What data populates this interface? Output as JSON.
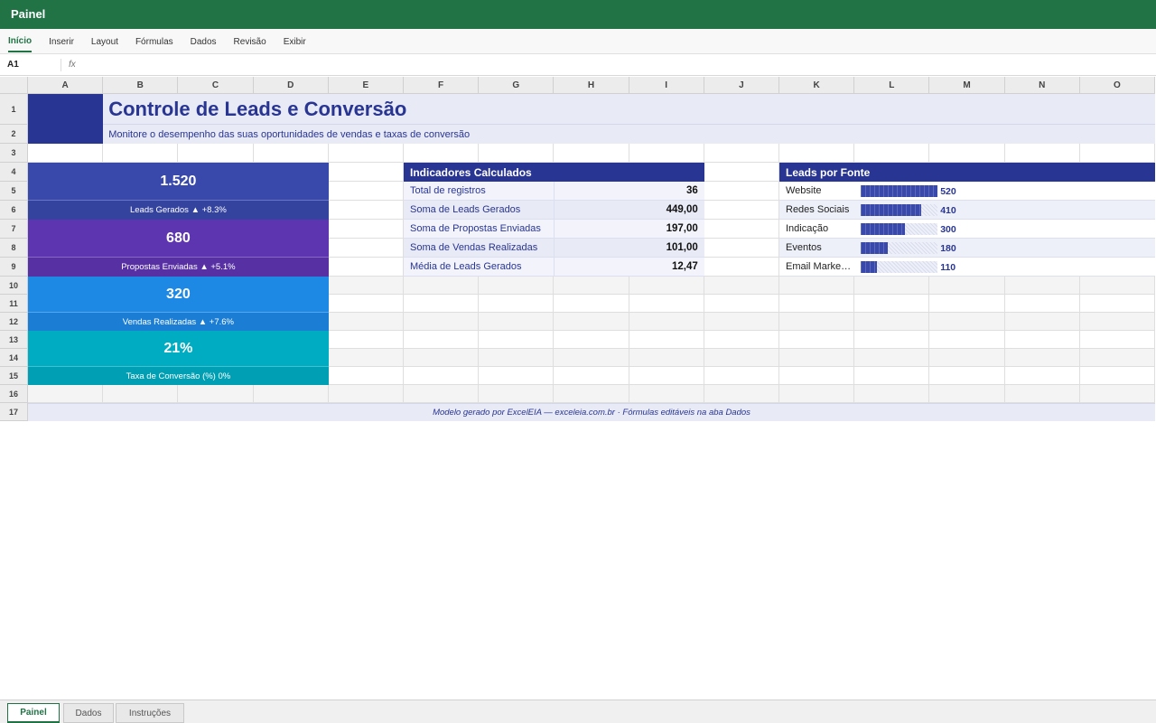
{
  "app": {
    "title": "Painel",
    "ribbon_tabs": [
      "Início",
      "Inserir",
      "Layout",
      "Fórmulas",
      "Dados",
      "Revisão",
      "Exibir"
    ],
    "cell_ref": "A1",
    "fx": "fx"
  },
  "columns": [
    "A",
    "B",
    "C",
    "D",
    "E",
    "F",
    "G",
    "H",
    "I",
    "J",
    "K",
    "L",
    "M",
    "N",
    "O"
  ],
  "rows": [
    1,
    2,
    3,
    4,
    5,
    6,
    7,
    8,
    9,
    10,
    11,
    12,
    13,
    14,
    15,
    16,
    17
  ],
  "header": {
    "title": "Controle de Leads e Conversão",
    "subtitle": "Monitore o desempenho das suas oportunidades de vendas e taxas de conversão"
  },
  "kpis": [
    {
      "value": "1.520",
      "label": "Leads Gerados ▲ +8.3%",
      "color": "#3949ab"
    },
    {
      "value": "680",
      "label": "Propostas Enviadas ▲ +5.1%",
      "color": "#5e35b1"
    },
    {
      "value": "320",
      "label": "Vendas Realizadas ▲ +7.6%",
      "color": "#1e88e5"
    },
    {
      "value": "21%",
      "label": "Taxa de Conversão (%) 0%",
      "color": "#00acc1"
    }
  ],
  "indicators": {
    "title": "Indicadores Calculados",
    "rows": [
      [
        "Total de registros",
        "36"
      ],
      [
        "Soma de Leads Gerados",
        "449,00"
      ],
      [
        "Soma de Propostas Enviadas",
        "197,00"
      ],
      [
        "Soma de Vendas Realizadas",
        "101,00"
      ],
      [
        "Média de Leads Gerados",
        "12,47"
      ]
    ]
  },
  "sources": {
    "title": "Leads por Fonte",
    "color": "#3949ab",
    "rows": [
      {
        "name": "Website",
        "value": 520
      },
      {
        "name": "Redes Sociais",
        "value": 410
      },
      {
        "name": "Indicação",
        "value": 300
      },
      {
        "name": "Eventos",
        "value": 180
      },
      {
        "name": "Email Marke…",
        "value": 110
      }
    ]
  },
  "footer": "Modelo gerado por ExcelEIA — exceleia.com.br · Fórmulas editáveis na aba Dados",
  "sheets": [
    "Painel",
    "Dados",
    "Instruções"
  ]
}
